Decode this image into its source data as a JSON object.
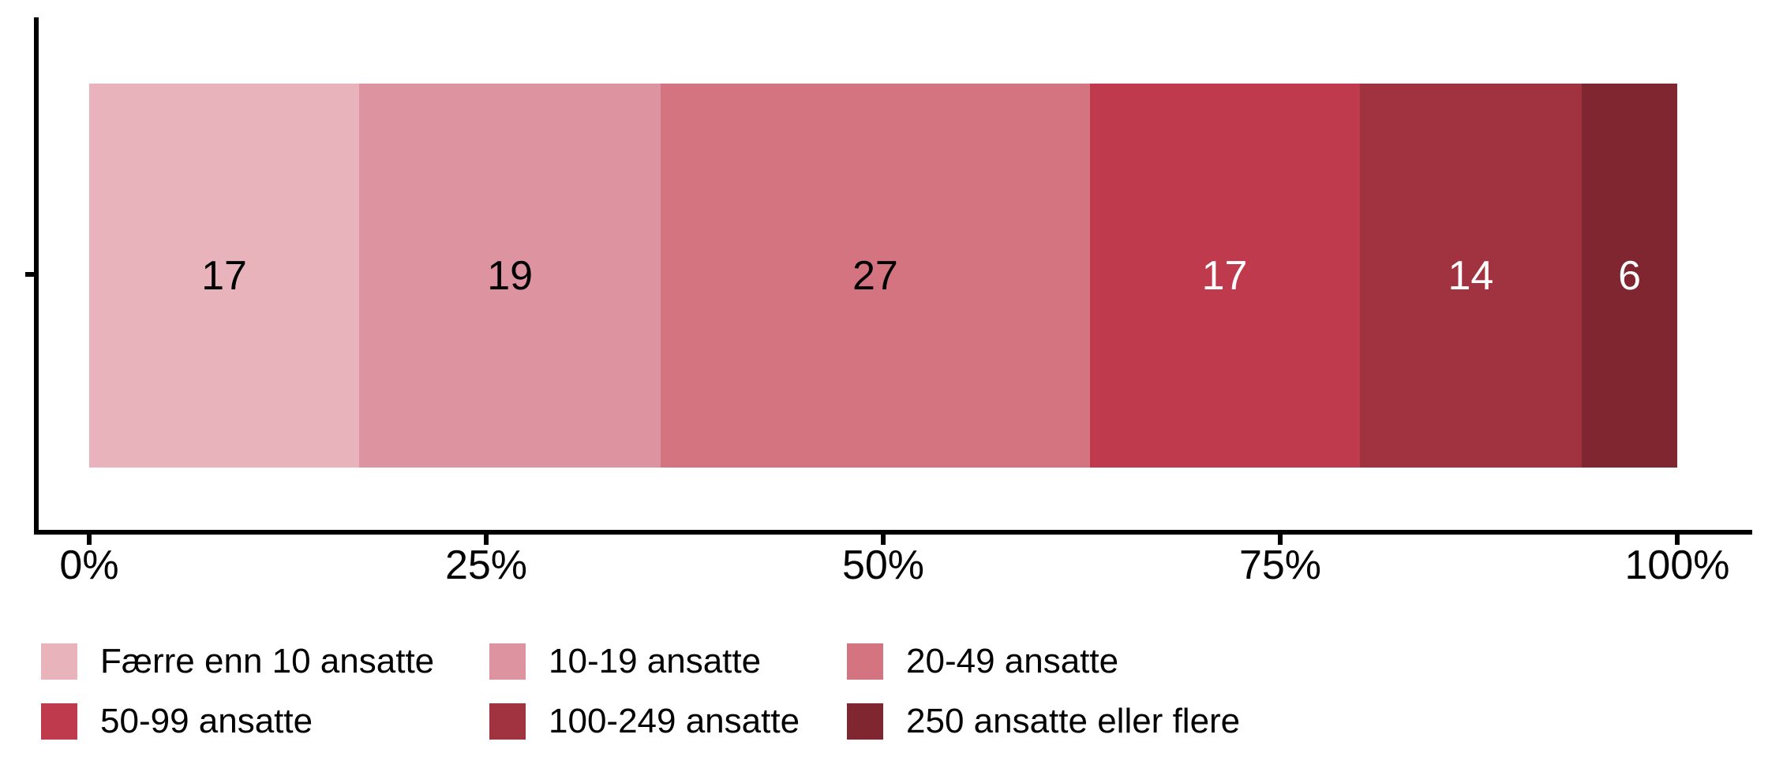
{
  "chart_data": {
    "type": "bar",
    "variant": "horizontal-stacked",
    "title": "",
    "xlabel": "",
    "ylabel": "",
    "xlim": [
      0,
      100
    ],
    "x_tick_unit": "%",
    "grid": false,
    "legend_position": "bottom",
    "axis_color": "#000000",
    "series": [
      {
        "name": "Færre enn 10 ansatte",
        "value": 17,
        "color": "#e9b3bb",
        "label_color": "#000000"
      },
      {
        "name": "10-19 ansatte",
        "value": 19,
        "color": "#dd94a0",
        "label_color": "#000000"
      },
      {
        "name": "20-49 ansatte",
        "value": 27,
        "color": "#d47480",
        "label_color": "#000000"
      },
      {
        "name": "50-99 ansatte",
        "value": 17,
        "color": "#c03a4e",
        "label_color": "#ffffff"
      },
      {
        "name": "100-249 ansatte",
        "value": 14,
        "color": "#a1323f",
        "label_color": "#ffffff"
      },
      {
        "name": "250 ansatte eller flere",
        "value": 6,
        "color": "#802631",
        "label_color": "#ffffff"
      }
    ],
    "ticks": [
      {
        "label": "0%",
        "pct": 0
      },
      {
        "label": "25%",
        "pct": 25
      },
      {
        "label": "50%",
        "pct": 50
      },
      {
        "label": "75%",
        "pct": 75
      },
      {
        "label": "100%",
        "pct": 100
      }
    ]
  }
}
